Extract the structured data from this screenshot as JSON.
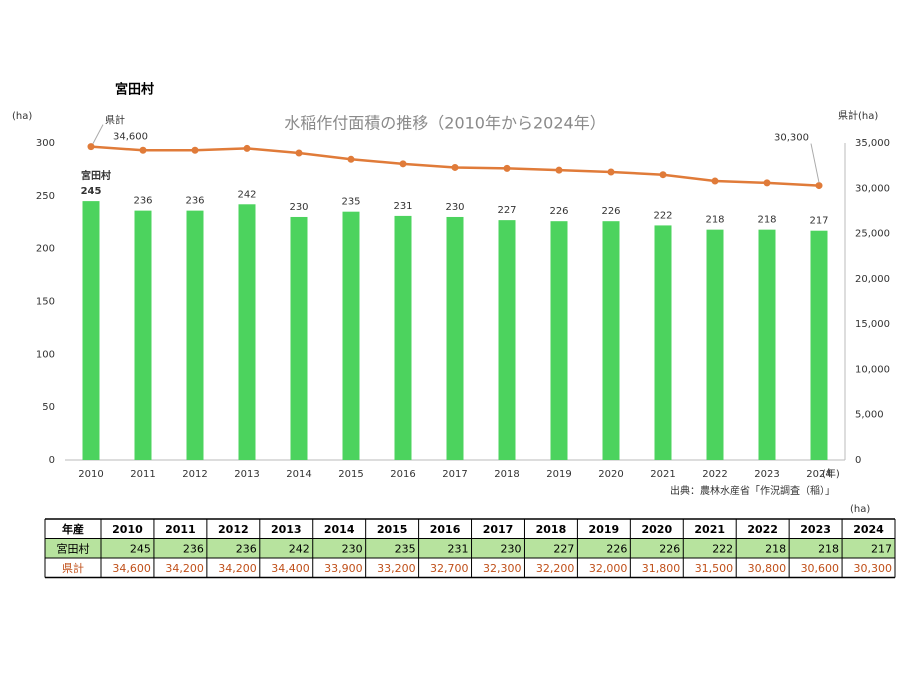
{
  "header": {
    "title": "宮田村"
  },
  "chart_data": {
    "type": "bar",
    "title": "水稲作付面積の推移（2010年から2024年）",
    "ylabel": "(ha)",
    "y2label": "県計(ha)",
    "xlabel": "(年)",
    "source": "出典：農林水産省「作況調査（稲）」",
    "categories": [
      "2010",
      "2011",
      "2012",
      "2013",
      "2014",
      "2015",
      "2016",
      "2017",
      "2018",
      "2019",
      "2020",
      "2021",
      "2022",
      "2023",
      "2024"
    ],
    "series": [
      {
        "name": "宮田村",
        "type": "bar",
        "color": "#4cd35e",
        "values": [
          245,
          236,
          236,
          242,
          230,
          235,
          231,
          230,
          227,
          226,
          226,
          222,
          218,
          218,
          217
        ]
      },
      {
        "name": "県計",
        "type": "line",
        "axis": "y2",
        "color": "#e07b39",
        "values": [
          34600,
          34200,
          34200,
          34400,
          33900,
          33200,
          32700,
          32300,
          32200,
          32000,
          31800,
          31500,
          30800,
          30600,
          30300
        ],
        "value_labels": [
          "34,600",
          null,
          null,
          null,
          null,
          null,
          null,
          null,
          null,
          null,
          null,
          null,
          null,
          null,
          "30,300"
        ]
      }
    ],
    "ylim": [
      0,
      300
    ],
    "yticks": [
      0,
      50,
      100,
      150,
      200,
      250,
      300
    ],
    "y2lim": [
      0,
      35000
    ],
    "y2ticks": [
      0,
      {
        "value": 5000,
        "label": "5,000"
      },
      {
        "value": 10000,
        "label": "10,000"
      },
      {
        "value": 15000,
        "label": "15,000"
      },
      {
        "value": 20000,
        "label": "20,000"
      },
      {
        "value": 25000,
        "label": "25,000"
      },
      {
        "value": 30000,
        "label": "30,000"
      },
      {
        "value": 35000,
        "label": "35,000"
      }
    ],
    "grid": false
  },
  "table": {
    "unit": "(ha)",
    "header": [
      "年産",
      "2010",
      "2011",
      "2012",
      "2013",
      "2014",
      "2015",
      "2016",
      "2017",
      "2018",
      "2019",
      "2020",
      "2021",
      "2022",
      "2023",
      "2024"
    ],
    "rows": [
      [
        "宮田村",
        245,
        236,
        236,
        242,
        230,
        235,
        231,
        230,
        227,
        226,
        226,
        222,
        218,
        218,
        217
      ],
      [
        "県計",
        "34,600",
        "34,200",
        "34,200",
        "34,400",
        "33,900",
        "33,200",
        "32,700",
        "32,300",
        "32,200",
        "32,000",
        "31,800",
        "31,500",
        "30,800",
        "30,600",
        "30,300"
      ]
    ]
  }
}
